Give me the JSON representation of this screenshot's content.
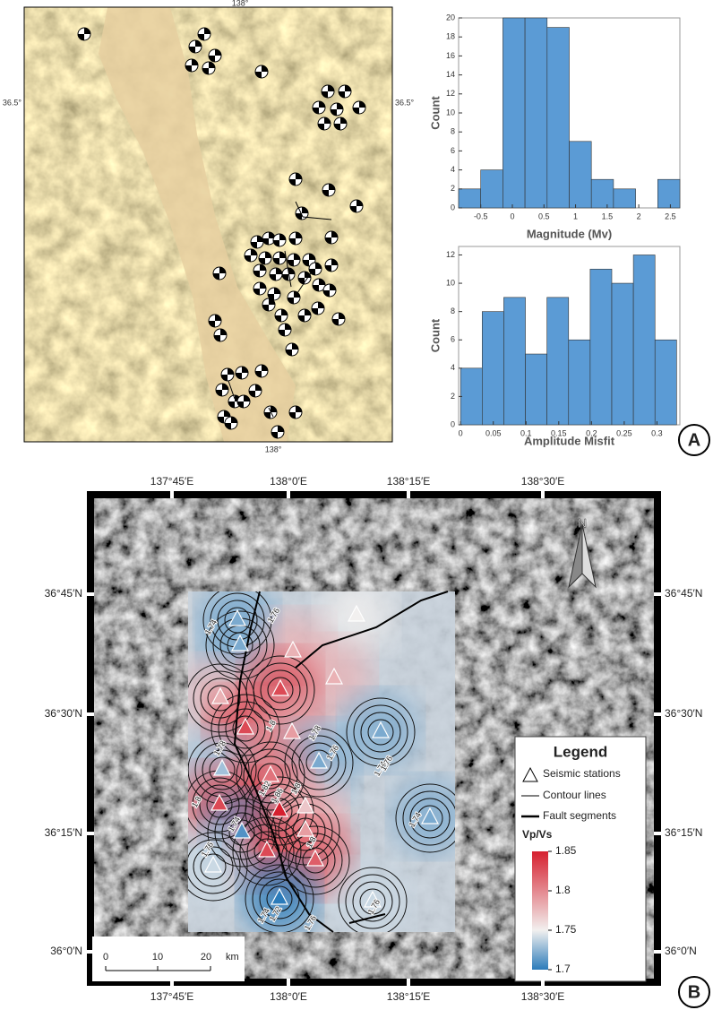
{
  "chart_data": [
    {
      "type": "histogram",
      "xlabel": "Magnitude (Mv)",
      "ylabel": "Count",
      "bins": [
        -0.85,
        -0.5,
        -0.15,
        0.2,
        0.55,
        0.9,
        1.25,
        1.6,
        1.95,
        2.3,
        2.65
      ],
      "values": [
        2,
        4,
        20,
        20,
        19,
        7,
        3,
        2,
        0,
        3
      ],
      "color": "#5b9bd5",
      "xlim": [
        -0.85,
        2.65
      ],
      "xticks": [
        -0.5,
        0,
        0.5,
        1,
        1.5,
        2,
        2.5
      ],
      "ylim": [
        0,
        20
      ],
      "yticks": [
        0,
        2,
        4,
        6,
        8,
        10,
        12,
        14,
        16,
        18,
        20
      ]
    },
    {
      "type": "histogram",
      "xlabel": "Amplitude Misfit",
      "ylabel": "Count",
      "bins": [
        0,
        0.033,
        0.066,
        0.099,
        0.132,
        0.165,
        0.198,
        0.231,
        0.264,
        0.297,
        0.33
      ],
      "values": [
        4,
        8,
        9,
        5,
        9,
        6,
        11,
        10,
        12,
        6
      ],
      "color": "#5b9bd5",
      "xlim": [
        -0.003,
        0.335
      ],
      "xticks": [
        0,
        0.05,
        0.1,
        0.15,
        0.2,
        0.25,
        0.3
      ],
      "ylim": [
        0,
        12.6
      ],
      "yticks": [
        0,
        2,
        4,
        6,
        8,
        10,
        12
      ]
    }
  ],
  "map_a": {
    "lon_label": "138°",
    "lat_label": "36.5°"
  },
  "map_b": {
    "lon_labels": [
      "137°45′E",
      "138°0′E",
      "138°15′E",
      "138°30′E"
    ],
    "lat_labels": [
      "36°45′N",
      "36°30′N",
      "36°15′N",
      "36°0′N"
    ],
    "north": "N",
    "contour_labels": [
      "1.76",
      "1.74",
      "1.78",
      "1.8",
      "1.78",
      "1.76",
      "1.74",
      "1.76",
      "1.82",
      "1.86",
      "1.8",
      "1.8",
      "1.74",
      "1.74",
      "1.76",
      "1.8",
      "1.76",
      "1.72",
      "1.74",
      "1.76"
    ],
    "station_vpvs": [
      1.72,
      1.75,
      1.72,
      1.78,
      1.78,
      1.78,
      1.83,
      1.83,
      1.79,
      1.72,
      1.73,
      1.72,
      1.81,
      1.83,
      1.85,
      1.77,
      1.72,
      1.71,
      1.79,
      1.83,
      1.82,
      1.74,
      1.7,
      1.74
    ],
    "legend": {
      "title": "Legend",
      "items": [
        "Seismic stations",
        "Contour lines",
        "Fault segments"
      ],
      "colorbar_title": "Vp/Vs"
    },
    "colorbar": {
      "lim": [
        1.7,
        1.85
      ],
      "ticks": [
        1.85,
        1.8,
        1.75,
        1.7
      ],
      "colors": [
        "#2b7bba",
        "#f2f0ef",
        "#d6202f"
      ],
      "mid": 1.75
    },
    "scale_labels": [
      "0",
      "10",
      "20",
      "km"
    ]
  },
  "panel_labels": [
    "A",
    "B"
  ]
}
